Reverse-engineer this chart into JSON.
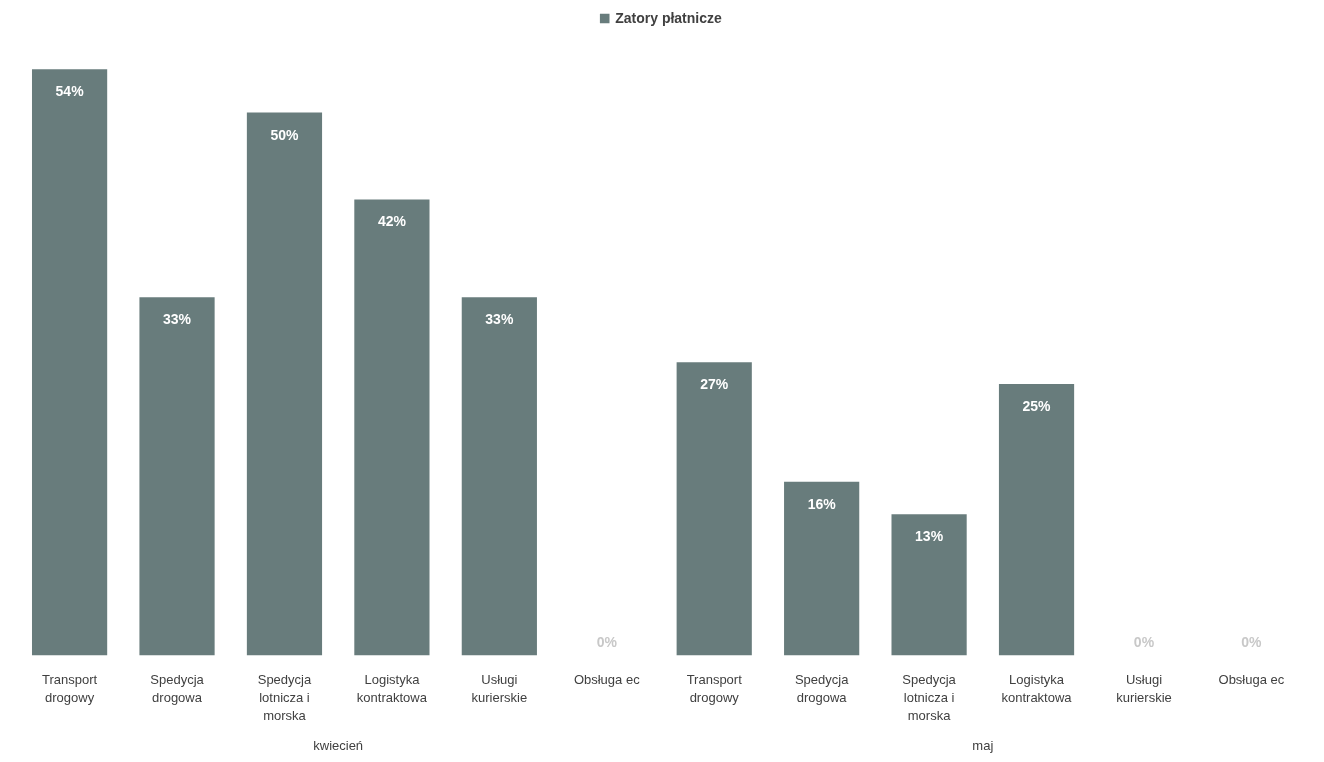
{
  "chart_data": {
    "type": "bar",
    "categories": [
      "Transport drogowy",
      "Spedycja drogowa",
      "Spedycja lotnicza i morska",
      "Logistyka kontraktowa",
      "Usługi kurierskie",
      "Obsługa ec",
      "Transport drogowy",
      "Spedycja drogowa",
      "Spedycja lotnicza i morska",
      "Logistyka kontraktowa",
      "Usługi kurierskie",
      "Obsługa ec"
    ],
    "series": [
      {
        "name": "Zatory płatnicze",
        "color": "#687c7c",
        "values": [
          54,
          33,
          50,
          42,
          33,
          0,
          27,
          16,
          13,
          25,
          0,
          0
        ],
        "value_labels": [
          "54%",
          "33%",
          "50%",
          "42%",
          "33%",
          "0%",
          "27%",
          "16%",
          "13%",
          "25%",
          "0%",
          "0%"
        ]
      }
    ],
    "annotations": [
      "kwiecień",
      "maj"
    ],
    "legend": "top",
    "grid": false
  }
}
